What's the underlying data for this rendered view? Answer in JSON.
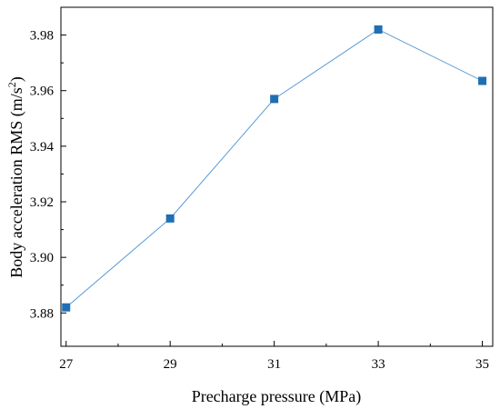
{
  "chart_data": {
    "type": "line",
    "title": "",
    "xlabel": "Precharge pressure (MPa)",
    "ylabel_main": "Body acceleration RMS (m/s",
    "ylabel_sup": "2",
    "ylabel_close": ")",
    "xlim": [
      26.9,
      35.2
    ],
    "ylim": [
      3.868,
      3.99
    ],
    "x_ticks": [
      27,
      29,
      31,
      33,
      35
    ],
    "y_ticks": [
      3.88,
      3.9,
      3.92,
      3.94,
      3.96,
      3.98
    ],
    "y_tick_labels": [
      "3.88",
      "3.90",
      "3.92",
      "3.94",
      "3.96",
      "3.98"
    ],
    "grid": false,
    "series": [
      {
        "x": [
          27,
          29,
          31,
          33,
          35
        ],
        "values": [
          3.882,
          3.914,
          3.957,
          3.982,
          3.9635
        ],
        "color": "#1f6fb4",
        "line_color": "#5b9bd5",
        "marker": "square"
      }
    ]
  }
}
